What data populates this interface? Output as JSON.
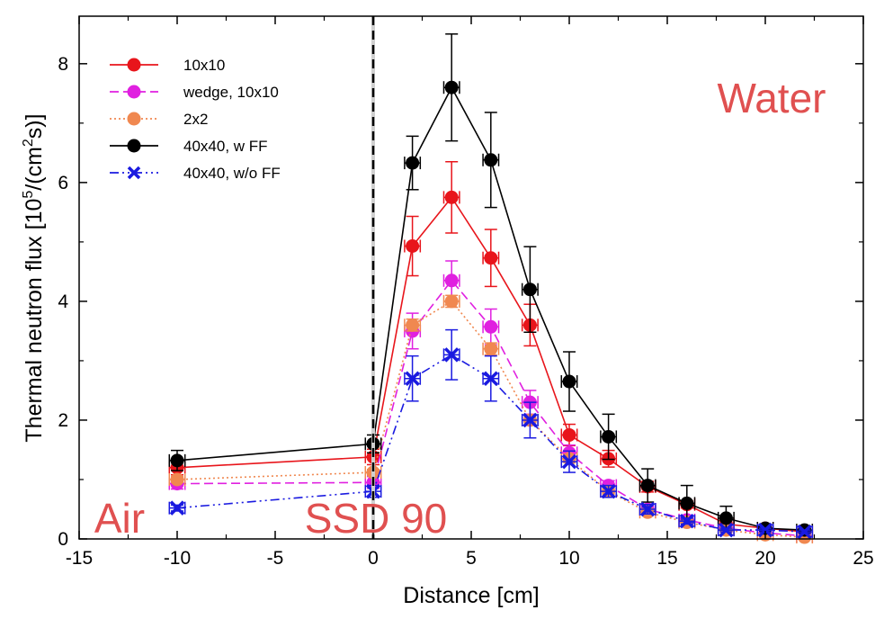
{
  "chart_data": {
    "type": "line",
    "title": "",
    "xlabel": "Distance [cm]",
    "ylabel": {
      "prefix": "Thermal neutron flux [10",
      "exp1": "5",
      "middle": "/(cm",
      "exp2": "2",
      "suffix": "s)]"
    },
    "xlim": [
      -15,
      25
    ],
    "ylim": [
      0,
      8.8
    ],
    "xticks": [
      -15,
      -10,
      -5,
      0,
      5,
      10,
      15,
      20,
      25
    ],
    "yticks": [
      0,
      2,
      4,
      6,
      8
    ],
    "x_error": 0.4,
    "legend_position": "top-left",
    "grid": false,
    "annotations": [
      {
        "text": "Water",
        "color": "#e05050"
      },
      {
        "text": "Air",
        "color": "#e05050"
      },
      {
        "text": "SSD 90",
        "color": "#e05050"
      }
    ],
    "reference_line": {
      "x": 0,
      "style": "dashed",
      "color": "#000000"
    },
    "series": [
      {
        "name": "10x10",
        "color": "#e8151b",
        "line_style": "solid",
        "marker": "circle",
        "x": [
          -10,
          0,
          2,
          4,
          6,
          8,
          10,
          12,
          14,
          16,
          18,
          20,
          22
        ],
        "values": [
          1.2,
          1.38,
          4.93,
          5.75,
          4.73,
          3.6,
          1.75,
          1.35,
          0.88,
          0.58,
          0.25,
          0.18,
          0.12
        ],
        "errors": [
          0.12,
          0.13,
          0.5,
          0.6,
          0.48,
          0.35,
          0.18,
          0.14,
          0.09,
          0.06,
          0.04,
          0.03,
          0.03
        ]
      },
      {
        "name": "wedge, 10x10",
        "color": "#e020e0",
        "line_style": "dashed",
        "marker": "circle",
        "x": [
          -10,
          0,
          2,
          4,
          6,
          8,
          10,
          12,
          14,
          16,
          18,
          20,
          22
        ],
        "values": [
          0.93,
          0.95,
          3.5,
          4.35,
          3.57,
          2.3,
          1.45,
          0.9,
          0.5,
          0.32,
          0.18,
          0.1,
          0.05
        ],
        "errors": [
          0.09,
          0.1,
          0.3,
          0.33,
          0.3,
          0.2,
          0.13,
          0.08,
          0.05,
          0.04,
          0.03,
          0.02,
          0.02
        ]
      },
      {
        "name": "2x2",
        "color": "#f08850",
        "line_style": "dotted",
        "marker": "circle",
        "x": [
          -10,
          0,
          2,
          4,
          6,
          8,
          10,
          12,
          14,
          16,
          18,
          20,
          22
        ],
        "values": [
          1.0,
          1.12,
          3.6,
          4.0,
          3.2,
          2.0,
          1.35,
          0.8,
          0.45,
          0.28,
          0.15,
          0.07,
          0.03
        ],
        "errors": [
          0.05,
          0.05,
          0.1,
          0.1,
          0.1,
          0.08,
          0.06,
          0.05,
          0.03,
          0.02,
          0.02,
          0.01,
          0.01
        ]
      },
      {
        "name": "40x40, w FF",
        "color": "#000000",
        "line_style": "solid",
        "marker": "circle",
        "x": [
          -10,
          0,
          2,
          4,
          6,
          8,
          10,
          12,
          14,
          16,
          18,
          20,
          22
        ],
        "values": [
          1.32,
          1.6,
          6.33,
          7.6,
          6.38,
          4.2,
          2.65,
          1.72,
          0.9,
          0.6,
          0.35,
          0.18,
          0.15
        ],
        "errors": [
          0.17,
          0.15,
          0.45,
          0.9,
          0.8,
          0.72,
          0.5,
          0.38,
          0.28,
          0.3,
          0.2,
          0.05,
          0.04
        ]
      },
      {
        "name": "40x40, w/o FF",
        "color": "#1a1ae0",
        "line_style": "dashdotdot",
        "marker": "x",
        "x": [
          -10,
          0,
          2,
          4,
          6,
          8,
          10,
          12,
          14,
          16,
          18,
          20,
          22
        ],
        "values": [
          0.52,
          0.8,
          2.7,
          3.1,
          2.7,
          2.0,
          1.3,
          0.8,
          0.5,
          0.3,
          0.15,
          0.15,
          0.12
        ],
        "errors": [
          0.05,
          0.1,
          0.38,
          0.42,
          0.38,
          0.3,
          0.18,
          0.1,
          0.08,
          0.05,
          0.03,
          0.03,
          0.03
        ]
      }
    ]
  }
}
